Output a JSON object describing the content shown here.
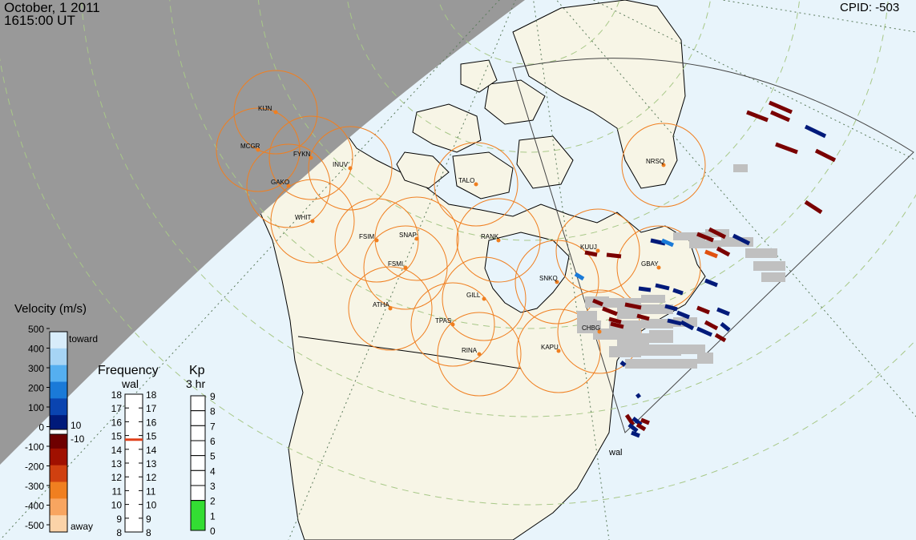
{
  "header": {
    "date": "October, 1 2011",
    "time": "1615:00 UT",
    "cpid": "CPID:  -503"
  },
  "colors": {
    "ocean": "#e8f4fb",
    "land": "#f7f5e6",
    "night": "#999999",
    "station_circle": "#f07f20",
    "station_dot": "#f07f20",
    "ground_scatter": "#c0c0c0",
    "kp_fill": "#33dd33",
    "freq_marker": "#e0401a"
  },
  "stations": [
    {
      "code": "KIJN"
    },
    {
      "code": "MCGR"
    },
    {
      "code": "FYKN"
    },
    {
      "code": "GAKO"
    },
    {
      "code": "INUV"
    },
    {
      "code": "WHIT"
    },
    {
      "code": "FSIM"
    },
    {
      "code": "SNAP"
    },
    {
      "code": "FSMI"
    },
    {
      "code": "ATHA"
    },
    {
      "code": "TPAS"
    },
    {
      "code": "GILL"
    },
    {
      "code": "RANK"
    },
    {
      "code": "TALO"
    },
    {
      "code": "NRSQ"
    },
    {
      "code": "KUUJ"
    },
    {
      "code": "GBAY"
    },
    {
      "code": "SNKQ"
    },
    {
      "code": "CHBG"
    },
    {
      "code": "KAPU"
    },
    {
      "code": "RINA"
    }
  ],
  "radar_label": "wal",
  "velocity_scale": {
    "title": "Velocity (m/s)",
    "ticks": [
      "500",
      "400",
      "300",
      "200",
      "100",
      "0",
      "-100",
      "-200",
      "-300",
      "-400",
      "-500"
    ],
    "toward": "toward",
    "away": "away",
    "inner_pos": "10",
    "inner_neg": "-10",
    "colors": [
      "#d8ecfa",
      "#a6d4f5",
      "#55aff0",
      "#1a7ad8",
      "#0a44b0",
      "#001a7a",
      "#6e0000",
      "#a01000",
      "#d04010",
      "#f07f20",
      "#f8a560",
      "#fbd3a8"
    ]
  },
  "frequency_scale": {
    "title": "Frequency",
    "radar": "wal",
    "ticks": [
      "18",
      "17",
      "16",
      "15",
      "14",
      "13",
      "12",
      "11",
      "10",
      "9",
      "8"
    ],
    "current_mhz": 14.7
  },
  "kp_scale": {
    "title": "Kp",
    "subtitle": "3 hr",
    "ticks": [
      "9",
      "8",
      "7",
      "6",
      "5",
      "4",
      "3",
      "2",
      "1",
      "0"
    ],
    "value": 2
  }
}
